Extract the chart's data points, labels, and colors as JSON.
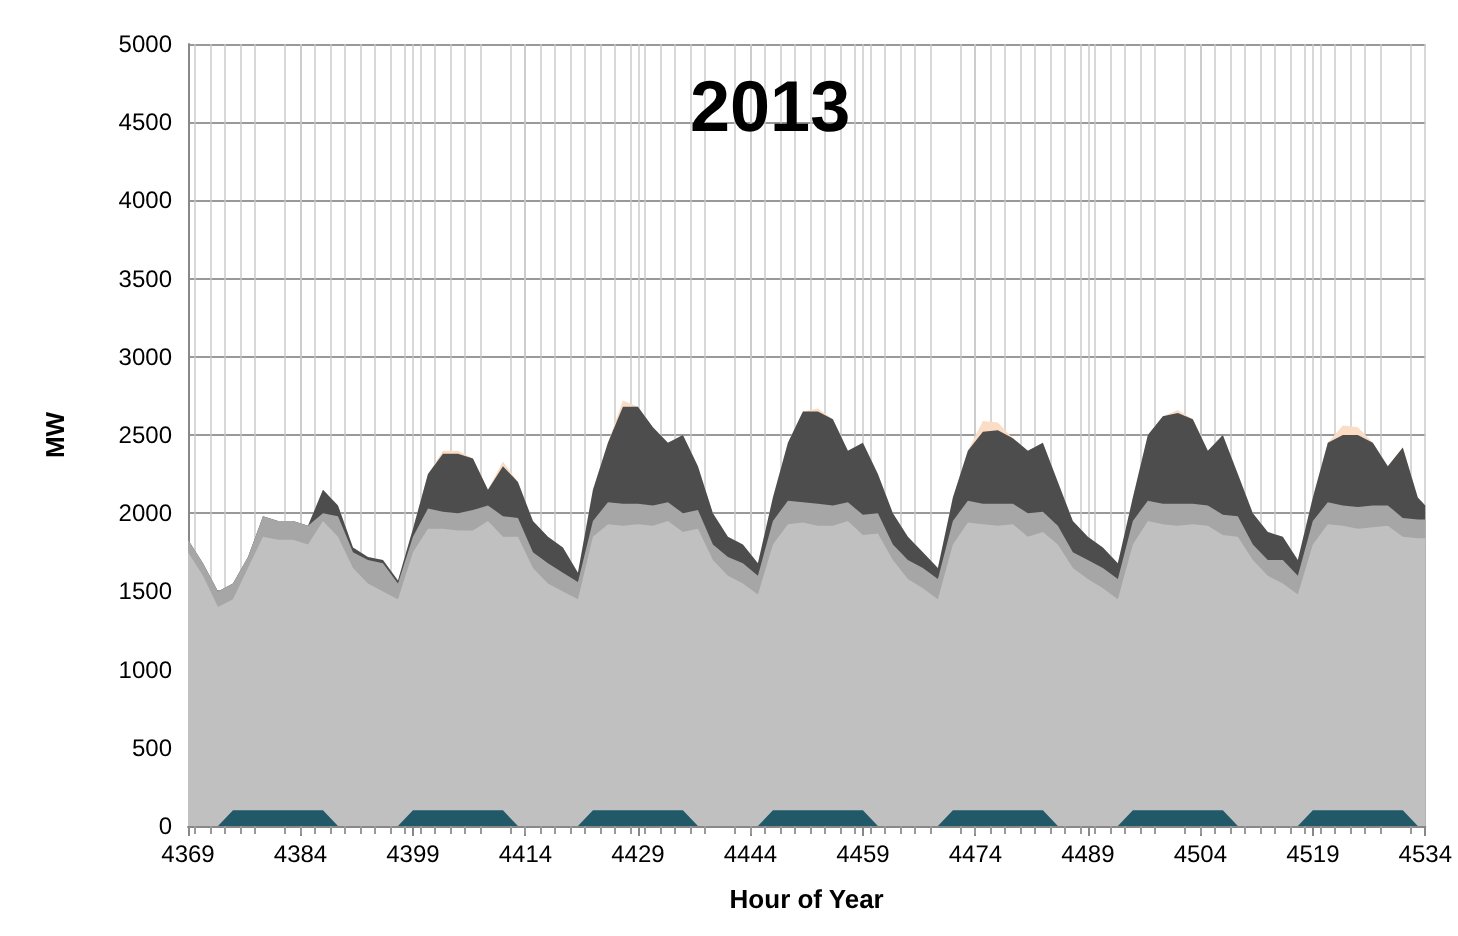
{
  "chart_data": {
    "type": "area",
    "title": "2013",
    "xlabel": "Hour of Year",
    "ylabel": "MW",
    "stacked": true,
    "grid": true,
    "marker": "none",
    "xlim": [
      4369,
      4534
    ],
    "xticks": [
      4369,
      4384,
      4399,
      4414,
      4429,
      4444,
      4459,
      4474,
      4489,
      4504,
      4519,
      4534
    ],
    "ylim": [
      0,
      5000
    ],
    "yticks": [
      0,
      500,
      1000,
      1500,
      2000,
      2500,
      3000,
      3500,
      4000,
      4500,
      5000
    ],
    "x": [
      4369,
      4371,
      4373,
      4375,
      4377,
      4379,
      4381,
      4383,
      4385,
      4387,
      4389,
      4391,
      4393,
      4395,
      4397,
      4399,
      4401,
      4403,
      4405,
      4407,
      4409,
      4411,
      4413,
      4415,
      4417,
      4419,
      4421,
      4423,
      4425,
      4427,
      4429,
      4431,
      4433,
      4435,
      4437,
      4439,
      4441,
      4443,
      4445,
      4447,
      4449,
      4451,
      4453,
      4455,
      4457,
      4459,
      4461,
      4463,
      4465,
      4467,
      4469,
      4471,
      4473,
      4475,
      4477,
      4479,
      4481,
      4483,
      4485,
      4487,
      4489,
      4491,
      4493,
      4495,
      4497,
      4499,
      4501,
      4503,
      4505,
      4507,
      4509,
      4511,
      4513,
      4515,
      4517,
      4519,
      4521,
      4523,
      4525,
      4527,
      4529,
      4531,
      4533,
      4534
    ],
    "series": [
      {
        "color": "#215968",
        "values": [
          0,
          0,
          0,
          100,
          100,
          100,
          100,
          100,
          100,
          100,
          0,
          0,
          0,
          0,
          0,
          100,
          100,
          100,
          100,
          100,
          100,
          100,
          0,
          0,
          0,
          0,
          0,
          100,
          100,
          100,
          100,
          100,
          100,
          100,
          0,
          0,
          0,
          0,
          0,
          100,
          100,
          100,
          100,
          100,
          100,
          100,
          0,
          0,
          0,
          0,
          0,
          100,
          100,
          100,
          100,
          100,
          100,
          100,
          0,
          0,
          0,
          0,
          0,
          100,
          100,
          100,
          100,
          100,
          100,
          100,
          0,
          0,
          0,
          0,
          0,
          100,
          100,
          100,
          100,
          100,
          100,
          100,
          0,
          0
        ]
      },
      {
        "color": "#c0c0c0",
        "values": [
          1750,
          1600,
          1400,
          1350,
          1550,
          1750,
          1730,
          1730,
          1700,
          1850,
          1850,
          1650,
          1550,
          1500,
          1450,
          1650,
          1800,
          1800,
          1790,
          1790,
          1850,
          1750,
          1850,
          1650,
          1550,
          1500,
          1450,
          1750,
          1830,
          1820,
          1830,
          1820,
          1850,
          1780,
          1900,
          1700,
          1600,
          1550,
          1480,
          1700,
          1830,
          1840,
          1820,
          1820,
          1850,
          1760,
          1870,
          1700,
          1580,
          1520,
          1450,
          1700,
          1840,
          1830,
          1820,
          1830,
          1750,
          1780,
          1800,
          1650,
          1580,
          1520,
          1450,
          1700,
          1850,
          1830,
          1820,
          1830,
          1820,
          1760,
          1850,
          1700,
          1600,
          1550,
          1480,
          1700,
          1830,
          1820,
          1800,
          1810,
          1820,
          1750,
          1840,
          1840
        ]
      },
      {
        "color": "#a6a6a6",
        "values": [
          80,
          80,
          100,
          100,
          70,
          130,
          120,
          120,
          120,
          50,
          130,
          100,
          150,
          180,
          100,
          100,
          130,
          110,
          110,
          130,
          100,
          130,
          120,
          100,
          130,
          120,
          110,
          100,
          140,
          140,
          130,
          130,
          120,
          120,
          120,
          100,
          120,
          130,
          120,
          150,
          150,
          130,
          140,
          130,
          120,
          130,
          130,
          100,
          120,
          130,
          130,
          150,
          140,
          130,
          140,
          130,
          150,
          130,
          120,
          100,
          120,
          130,
          130,
          150,
          130,
          130,
          140,
          130,
          130,
          130,
          130,
          100,
          100,
          150,
          120,
          150,
          140,
          130,
          140,
          140,
          130,
          120,
          120,
          120
        ]
      },
      {
        "color": "#4d4d4d",
        "values": [
          0,
          0,
          0,
          0,
          0,
          0,
          0,
          0,
          0,
          150,
          70,
          30,
          20,
          20,
          20,
          50,
          220,
          370,
          380,
          330,
          100,
          320,
          230,
          200,
          170,
          160,
          60,
          200,
          380,
          620,
          620,
          500,
          380,
          500,
          280,
          200,
          130,
          120,
          80,
          150,
          370,
          580,
          590,
          550,
          330,
          460,
          250,
          200,
          150,
          100,
          70,
          150,
          320,
          460,
          470,
          420,
          400,
          440,
          280,
          200,
          150,
          130,
          100,
          150,
          420,
          560,
          580,
          540,
          350,
          510,
          270,
          200,
          180,
          150,
          100,
          150,
          380,
          450,
          460,
          400,
          250,
          450,
          140,
          90
        ]
      },
      {
        "color": "#fbdcc4",
        "values": [
          0,
          0,
          0,
          0,
          0,
          0,
          0,
          0,
          0,
          0,
          0,
          0,
          0,
          0,
          0,
          0,
          0,
          20,
          20,
          0,
          0,
          30,
          0,
          0,
          0,
          0,
          0,
          0,
          0,
          40,
          0,
          0,
          0,
          0,
          0,
          0,
          0,
          0,
          0,
          0,
          0,
          0,
          20,
          0,
          0,
          0,
          0,
          0,
          0,
          0,
          0,
          0,
          0,
          70,
          50,
          0,
          0,
          0,
          0,
          0,
          0,
          0,
          0,
          0,
          0,
          0,
          20,
          0,
          0,
          0,
          0,
          0,
          0,
          0,
          0,
          0,
          0,
          60,
          50,
          0,
          0,
          0,
          0,
          0
        ]
      }
    ]
  }
}
